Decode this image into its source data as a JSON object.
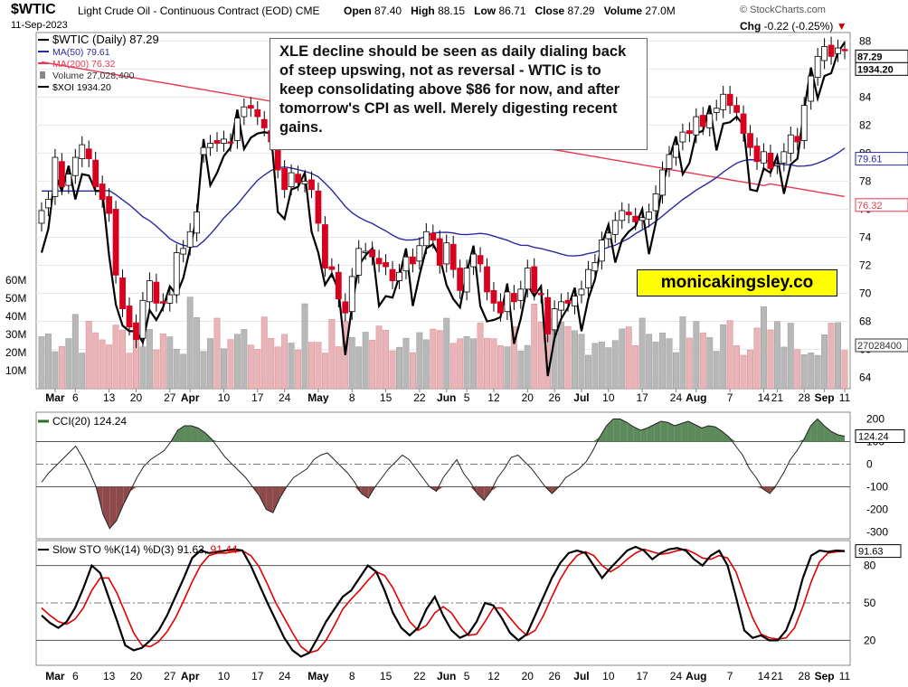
{
  "header": {
    "symbol": "$WTIC",
    "contract": "Light Crude Oil - Continuous Contract (EOD)",
    "exchange": "CME",
    "date": "11-Sep-2023",
    "open_label": "Open",
    "open": "87.40",
    "high_label": "High",
    "high": "88.15",
    "low_label": "Low",
    "low": "86.71",
    "close_label": "Close",
    "close": "87.29",
    "volume_label": "Volume",
    "volume": "27.0M",
    "chg_label": "Chg",
    "chg": "-0.22 (-0.25%)",
    "brand": "© StockCharts.com"
  },
  "annotation": {
    "text": "XLE decline should be seen as daily dialing back of steep upswing, not as reversal - WTIC is to keep consolidating above $86 for now, and after tomorrow's CPI as well. Merely digesting recent gains."
  },
  "watermark": "monicakingsley.co",
  "colors": {
    "up": "#ffffff",
    "down": "#d7001f",
    "ma50": "#2a2aa0",
    "ma200": "#e8384f",
    "xoi": "#000000",
    "volume_up": "#b8b8b8",
    "volume_down": "#e8b4b8",
    "cci_fill_pos": "#5d8a5a",
    "cci_fill_neg": "#8e4a4a",
    "sto_d": "#e00000"
  },
  "chart_data": [
    {
      "type": "candlestick",
      "legend": {
        "price": "$WTIC (Daily) 87.29",
        "ma50": "MA(50) 79.61",
        "ma200": "MA(200) 76.32",
        "volume": "Volume 27,028,400",
        "xoi": "$XOI 1934.20"
      },
      "price_axis": {
        "ylim": [
          63.2,
          88.6
        ],
        "ticks": [
          64,
          66,
          68,
          70,
          72,
          74,
          76,
          78,
          80,
          82,
          84,
          86,
          88
        ]
      },
      "volume_axis": {
        "ticks": [
          "10M",
          "20M",
          "30M",
          "40M",
          "50M",
          "60M"
        ],
        "values": [
          10,
          20,
          30,
          40,
          50,
          60
        ]
      },
      "x_tick_labels": [
        "Mar",
        "6",
        "13",
        "20",
        "27",
        "Apr",
        "10",
        "17",
        "24",
        "May",
        "8",
        "15",
        "22",
        "Jun",
        "5",
        "12",
        "20",
        "26",
        "Jul",
        "10",
        "17",
        "24",
        "Aug",
        "7",
        "14",
        "21",
        "28",
        "Sep",
        "11"
      ],
      "tags": {
        "close": "87.29",
        "xoi": "1934.20",
        "ma50": "79.61",
        "ma200": "76.32",
        "volume": "27028400"
      },
      "series": [
        {
          "name": "$WTIC",
          "close": [
            75.9,
            76.7,
            79.7,
            77.6,
            78.5,
            79.7,
            80.6,
            79.6,
            77.6,
            76.7,
            75.7,
            71.3,
            68.9,
            67.6,
            66.7,
            69.5,
            70.9,
            69.3,
            69.3,
            69.9,
            72.9,
            73.2,
            74.4,
            75.8,
            80.4,
            80.7,
            80.7,
            81.0,
            80.7,
            82.5,
            83.3,
            83.2,
            82.6,
            81.8,
            80.8,
            78.8,
            77.4,
            78.6,
            77.9,
            78.0,
            77.4,
            75.0,
            71.8,
            71.7,
            69.6,
            68.6,
            71.2,
            73.2,
            73.0,
            72.6,
            72.1,
            71.9,
            70.9,
            71.5,
            72.6,
            72.1,
            73.4,
            74.4,
            73.8,
            72.0,
            73.6,
            71.7,
            70.2,
            71.8,
            72.8,
            72.1,
            70.1,
            69.3,
            68.6,
            70.1,
            69.4,
            70.3,
            71.8,
            70.1,
            69.9,
            67.1,
            68.9,
            69.4,
            69.3,
            69.8,
            70.3,
            71.7,
            72.2,
            73.8,
            74.3,
            75.2,
            75.9,
            75.6,
            75.1,
            75.4,
            75.8,
            77.1,
            78.8,
            79.9,
            80.6,
            81.5,
            81.4,
            82.6,
            81.9,
            82.8,
            83.2,
            84.2,
            83.4,
            82.9,
            81.4,
            80.4,
            79.4,
            80.1,
            78.9,
            79.2,
            80.1,
            81.3,
            80.8,
            83.4,
            85.5,
            86.9,
            87.6,
            86.9,
            87.5,
            87.3
          ],
          "open": [
            75.0,
            76.1,
            76.9,
            79.4,
            77.7,
            78.4,
            79.6,
            80.3,
            79.5,
            77.8,
            76.9,
            76.0,
            71.1,
            69.1,
            67.9,
            66.8,
            69.4,
            70.8,
            69.4,
            69.3,
            69.9,
            72.8,
            73.3,
            74.3,
            79.9,
            80.4,
            80.9,
            80.7,
            80.8,
            80.9,
            82.6,
            83.4,
            83.1,
            82.4,
            81.6,
            80.7,
            78.9,
            77.6,
            78.5,
            77.8,
            78.1,
            77.3,
            74.9,
            71.9,
            71.5,
            69.4,
            68.7,
            71.3,
            73.0,
            73.1,
            72.5,
            72.2,
            71.7,
            70.9,
            71.6,
            72.6,
            72.3,
            73.4,
            74.3,
            73.9,
            72.1,
            73.5,
            71.8,
            70.1,
            71.9,
            72.7,
            71.9,
            70.2,
            69.4,
            68.7,
            70.0,
            69.5,
            70.3,
            71.9,
            70.0,
            69.7,
            67.4,
            68.8,
            69.5,
            69.1,
            69.9,
            70.4,
            71.6,
            72.3,
            73.9,
            74.2,
            75.2,
            75.8,
            75.5,
            75.2,
            75.3,
            75.9,
            77.0,
            78.9,
            79.7,
            80.8,
            81.6,
            81.3,
            82.7,
            81.8,
            82.9,
            83.1,
            84.2,
            83.4,
            82.8,
            81.4,
            80.5,
            79.3,
            80.0,
            79.1,
            79.3,
            80.0,
            81.2,
            80.9,
            83.7,
            85.4,
            86.6,
            87.7,
            87.1,
            87.4
          ]
        }
      ]
    },
    {
      "type": "line",
      "title": "CCI(20) 124.24",
      "ylim": [
        -330,
        230
      ],
      "ticks": [
        200,
        100,
        0,
        -100,
        -200,
        -300
      ],
      "tag": "124.24",
      "values": [
        -80,
        -40,
        -10,
        20,
        50,
        80,
        30,
        -30,
        -100,
        -220,
        -285,
        -250,
        -180,
        -120,
        -60,
        -10,
        20,
        40,
        60,
        100,
        150,
        170,
        170,
        160,
        140,
        110,
        70,
        30,
        0,
        -30,
        -60,
        -100,
        -140,
        -200,
        -215,
        -150,
        -100,
        -60,
        -40,
        -20,
        20,
        40,
        50,
        20,
        -10,
        -40,
        -80,
        -130,
        -150,
        -100,
        -60,
        -20,
        10,
        40,
        20,
        -20,
        -60,
        -100,
        -120,
        -60,
        -20,
        20,
        -40,
        -80,
        -130,
        -160,
        -120,
        -60,
        -20,
        30,
        40,
        10,
        -20,
        -60,
        -100,
        -130,
        -100,
        -60,
        -40,
        -20,
        10,
        60,
        120,
        170,
        200,
        200,
        185,
        165,
        150,
        160,
        175,
        190,
        185,
        170,
        180,
        190,
        175,
        160,
        170,
        165,
        145,
        120,
        80,
        40,
        -20,
        -60,
        -110,
        -130,
        -90,
        -40,
        20,
        60,
        110,
        170,
        200,
        170,
        145,
        130,
        124
      ]
    },
    {
      "type": "line",
      "title": "Slow STO %K(14) %D(3) 91.63, 91.44",
      "series_names": [
        "%K(14)",
        "%D(3)"
      ],
      "ylim": [
        0,
        100
      ],
      "ticks": [
        80,
        50,
        20
      ],
      "tags": {
        "k": "91.63"
      },
      "k": [
        40,
        34,
        30,
        35,
        46,
        62,
        80,
        74,
        55,
        36,
        16,
        12,
        14,
        20,
        28,
        40,
        55,
        70,
        86,
        92,
        90,
        91,
        92,
        93,
        92,
        80,
        65,
        50,
        36,
        22,
        12,
        7,
        10,
        22,
        35,
        45,
        55,
        60,
        70,
        80,
        75,
        60,
        42,
        30,
        24,
        30,
        45,
        55,
        40,
        28,
        22,
        25,
        35,
        50,
        48,
        38,
        26,
        20,
        25,
        40,
        55,
        70,
        82,
        90,
        92,
        90,
        80,
        70,
        78,
        85,
        92,
        95,
        92,
        85,
        90,
        93,
        94,
        92,
        85,
        80,
        88,
        92,
        80,
        55,
        28,
        22,
        24,
        20,
        20,
        28,
        45,
        70,
        88,
        92,
        91,
        92,
        91.6
      ],
      "d": [
        46,
        40,
        35,
        33,
        37,
        46,
        60,
        70,
        70,
        58,
        42,
        26,
        16,
        15,
        19,
        27,
        38,
        52,
        67,
        80,
        88,
        90,
        90,
        91,
        92,
        88,
        79,
        65,
        50,
        38,
        26,
        15,
        10,
        12,
        20,
        32,
        45,
        53,
        60,
        68,
        75,
        72,
        62,
        48,
        35,
        28,
        32,
        42,
        47,
        42,
        32,
        24,
        25,
        35,
        46,
        46,
        38,
        30,
        24,
        28,
        40,
        55,
        69,
        80,
        88,
        91,
        88,
        80,
        75,
        79,
        85,
        90,
        93,
        91,
        89,
        90,
        92,
        93,
        90,
        86,
        85,
        88,
        86,
        75,
        56,
        38,
        25,
        22,
        21,
        22,
        30,
        47,
        67,
        83,
        90,
        91,
        91.4
      ]
    }
  ]
}
